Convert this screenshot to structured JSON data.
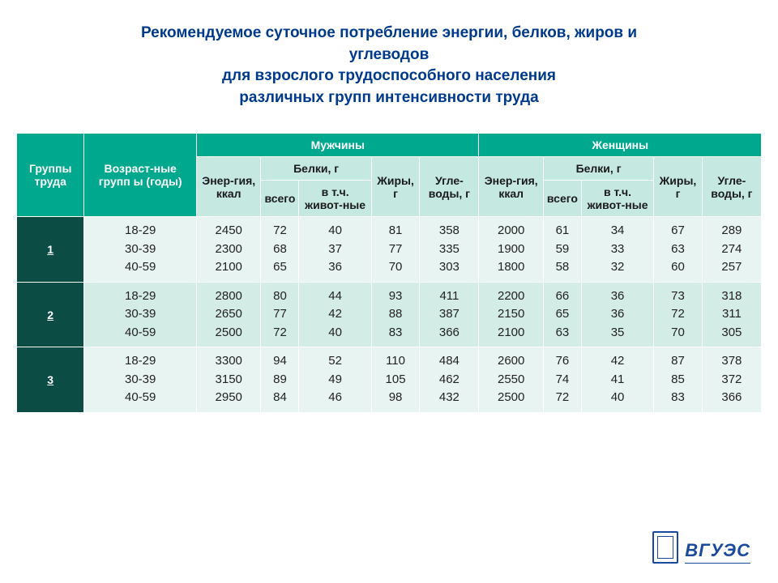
{
  "title": {
    "line1": "Рекомендуемое суточное потребление энергии, белков, жиров и",
    "line2": "углеводов",
    "line3": "для взрослого трудоспособного населения",
    "line4": "различных групп интенсивности труда"
  },
  "headers": {
    "groups": "Группы труда",
    "age": "Возраст-ные групп ы (годы)",
    "men": "Мужчины",
    "women": "Женщины",
    "energy": "Энер-гия, ккал",
    "protein": "Белки, г",
    "protein_total": "всего",
    "protein_animal": "в т.ч. живот-ные",
    "fat": "Жиры, г",
    "carbs": "Угле-воды, г"
  },
  "rows": [
    {
      "group": "1",
      "age": [
        "18-29",
        "30-39",
        "40-59"
      ],
      "m_energy": [
        "2450",
        "2300",
        "2100"
      ],
      "m_prot": [
        "72",
        "68",
        "65"
      ],
      "m_prot_a": [
        "40",
        "37",
        "36"
      ],
      "m_fat": [
        "81",
        "77",
        "70"
      ],
      "m_carb": [
        "358",
        "335",
        "303"
      ],
      "w_energy": [
        "2000",
        "1900",
        "1800"
      ],
      "w_prot": [
        "61",
        "59",
        "58"
      ],
      "w_prot_a": [
        "34",
        "33",
        "32"
      ],
      "w_fat": [
        "67",
        "63",
        "60"
      ],
      "w_carb": [
        "289",
        "274",
        "257"
      ]
    },
    {
      "group": "2",
      "age": [
        "18-29",
        "30-39",
        "40-59"
      ],
      "m_energy": [
        "2800",
        "2650",
        "2500"
      ],
      "m_prot": [
        "80",
        "77",
        "72"
      ],
      "m_prot_a": [
        "44",
        "42",
        "40"
      ],
      "m_fat": [
        "93",
        "88",
        "83"
      ],
      "m_carb": [
        "411",
        "387",
        "366"
      ],
      "w_energy": [
        "2200",
        "2150",
        "2100"
      ],
      "w_prot": [
        "66",
        "65",
        "63"
      ],
      "w_prot_a": [
        "36",
        "36",
        "35"
      ],
      "w_fat": [
        "73",
        "72",
        "70"
      ],
      "w_carb": [
        "318",
        "311",
        "305"
      ]
    },
    {
      "group": "3",
      "age": [
        "18-29",
        "30-39",
        "40-59"
      ],
      "m_energy": [
        "3300",
        "3150",
        "2950"
      ],
      "m_prot": [
        "94",
        "89",
        "84"
      ],
      "m_prot_a": [
        "52",
        "49",
        "46"
      ],
      "m_fat": [
        "110",
        "105",
        "98"
      ],
      "m_carb": [
        "484",
        "462",
        "432"
      ],
      "w_energy": [
        "2600",
        "2550",
        "2500"
      ],
      "w_prot": [
        "76",
        "74",
        "72"
      ],
      "w_prot_a": [
        "42",
        "41",
        "40"
      ],
      "w_fat": [
        "87",
        "85",
        "83"
      ],
      "w_carb": [
        "378",
        "372",
        "366"
      ]
    }
  ],
  "logo": "ВГУЭС",
  "colors": {
    "title": "#003a8c",
    "teal": "#00a88e",
    "mint": "#c5e8e0",
    "dark": "#0b4d45",
    "light1": "#e8f4f1",
    "light2": "#d4ece6",
    "logo": "#1a4a9c"
  }
}
